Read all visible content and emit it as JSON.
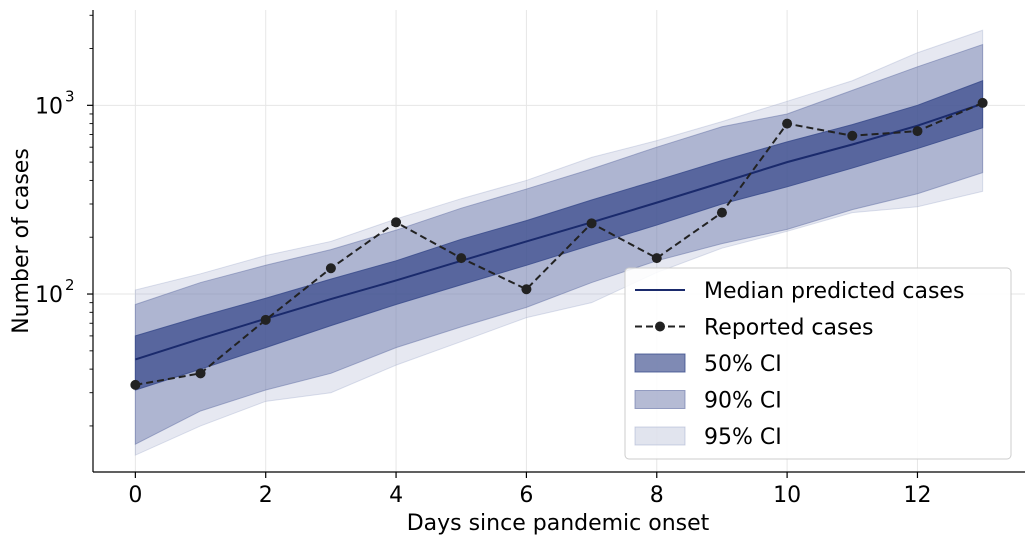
{
  "chart_data": {
    "type": "line",
    "xlabel": "Days since pandemic onset",
    "ylabel": "Number of cases",
    "yscale": "log",
    "xlim": [
      -0.65,
      13.65
    ],
    "ylim": [
      11.4,
      3200
    ],
    "grid": true,
    "legend_position": "lower-right",
    "x": [
      0,
      1,
      2,
      3,
      4,
      5,
      6,
      7,
      8,
      9,
      10,
      11,
      12,
      13
    ],
    "x_ticks": [
      0,
      2,
      4,
      6,
      8,
      10,
      12
    ],
    "x_tick_labels": [
      "0",
      "2",
      "4",
      "6",
      "8",
      "10",
      "12"
    ],
    "y_ticks": [
      100,
      1000
    ],
    "y_tick_labels": [
      {
        "base": "10",
        "exp": "2"
      },
      {
        "base": "10",
        "exp": "3"
      }
    ],
    "series": [
      {
        "name": "Median predicted cases",
        "kind": "line",
        "color": "#1a2a6c",
        "values": [
          45,
          58,
          74,
          94,
          118,
          150,
          190,
          240,
          305,
          390,
          500,
          620,
          780,
          1020
        ]
      },
      {
        "name": "Reported cases",
        "kind": "line-markers",
        "color": "#222222",
        "values": [
          33,
          38,
          73,
          137,
          240,
          155,
          106,
          237,
          155,
          270,
          800,
          690,
          730,
          1030
        ]
      }
    ],
    "bands": [
      {
        "name": "95% CI",
        "color": "#9aa5c8",
        "opacity": 0.25,
        "lower": [
          14,
          20,
          27,
          30,
          42,
          56,
          75,
          90,
          130,
          175,
          215,
          270,
          290,
          350
        ],
        "upper": [
          105,
          128,
          160,
          190,
          250,
          320,
          400,
          530,
          650,
          820,
          1050,
          1350,
          1900,
          2500
        ]
      },
      {
        "name": "90% CI",
        "color": "#6b78aa",
        "opacity": 0.45,
        "lower": [
          16,
          24,
          31,
          38,
          52,
          67,
          85,
          115,
          150,
          185,
          220,
          280,
          340,
          440
        ],
        "upper": [
          88,
          115,
          142,
          172,
          218,
          285,
          360,
          460,
          600,
          770,
          900,
          1200,
          1600,
          2100
        ]
      },
      {
        "name": "50% CI",
        "color": "#3b4c8c",
        "opacity": 0.75,
        "lower": [
          31,
          40,
          52,
          68,
          88,
          112,
          142,
          182,
          232,
          300,
          370,
          465,
          590,
          760
        ],
        "upper": [
          60,
          76,
          95,
          120,
          150,
          195,
          245,
          315,
          400,
          510,
          640,
          790,
          1000,
          1350
        ]
      }
    ],
    "legend": [
      {
        "label": "Median predicted cases",
        "kind": "line",
        "color": "#1a2a6c"
      },
      {
        "label": "Reported cases",
        "kind": "line-markers",
        "color": "#222222"
      },
      {
        "label": "50% CI",
        "kind": "patch",
        "color": "#3b4c8c",
        "opacity": 0.65
      },
      {
        "label": "90% CI",
        "kind": "patch",
        "color": "#6b78aa",
        "opacity": 0.5
      },
      {
        "label": "95% CI",
        "kind": "patch",
        "color": "#9aa5c8",
        "opacity": 0.3
      }
    ]
  }
}
